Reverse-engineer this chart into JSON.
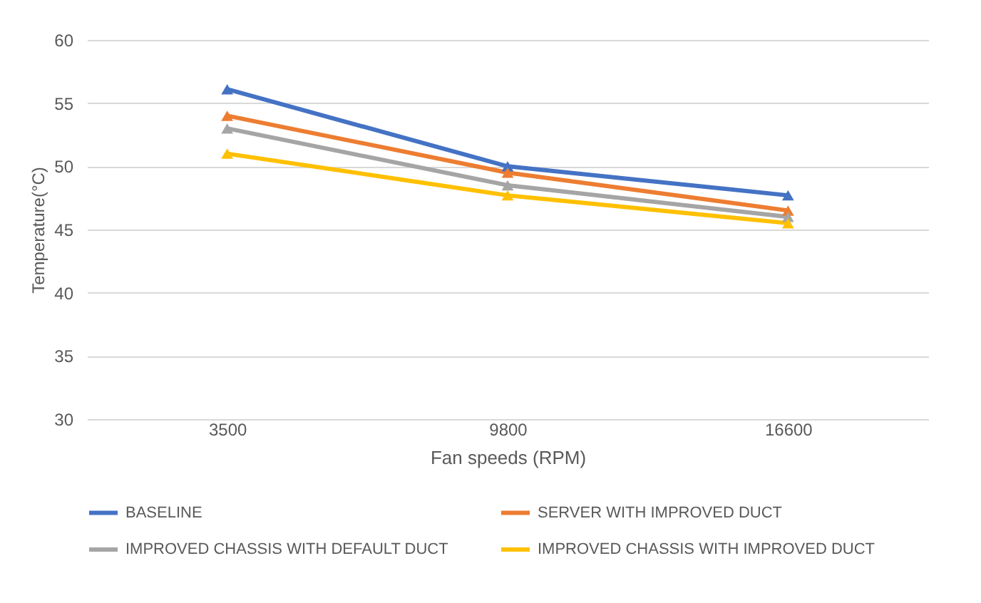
{
  "chart_data": {
    "type": "line",
    "xlabel": "Fan speeds (RPM)",
    "ylabel": "Temperature(°C)",
    "categories": [
      "3500",
      "9800",
      "16600"
    ],
    "series": [
      {
        "name": "BASELINE",
        "color": "#4472c4",
        "values": [
          56.1,
          50,
          47.7
        ]
      },
      {
        "name": "SERVER WITH IMPROVED DUCT",
        "color": "#ed7d31",
        "values": [
          54,
          49.5,
          46.5
        ]
      },
      {
        "name": "IMPROVED CHASSIS WITH DEFAULT DUCT",
        "color": "#a5a5a5",
        "values": [
          53,
          48.5,
          46
        ]
      },
      {
        "name": "IMPROVED CHASSIS WITH IMPROVED DUCT",
        "color": "#ffc000",
        "values": [
          51,
          47.7,
          45.5
        ]
      }
    ],
    "ylim": [
      30,
      60
    ],
    "yticks": [
      30,
      35,
      40,
      45,
      50,
      55,
      60
    ],
    "grid": "y",
    "legend": "bottom",
    "marker": "triangle",
    "line_style": "solid"
  }
}
